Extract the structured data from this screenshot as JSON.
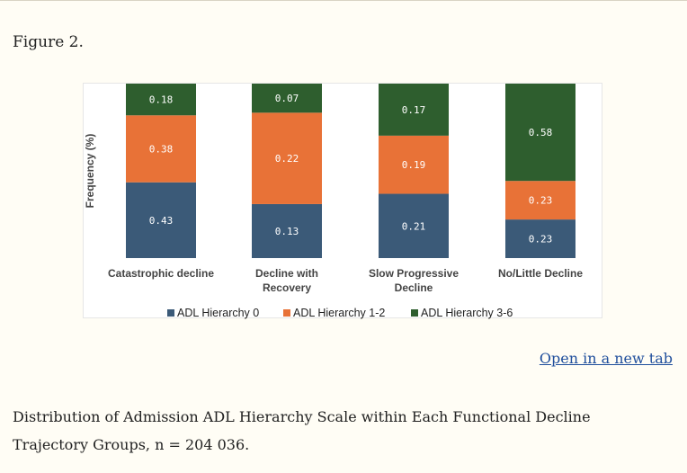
{
  "page": {
    "figure_label": "Figure 2.",
    "open_link": "Open in a new tab",
    "caption": "Distribution of Admission ADL Hierarchy Scale within Each Functional Decline Trajectory Groups, n = 204 036."
  },
  "chart_data": {
    "type": "bar",
    "stacked": true,
    "title": "",
    "xlabel": "",
    "ylabel": "Frequency (%)",
    "ylim": [
      0,
      1
    ],
    "grid": false,
    "legend_position": "bottom",
    "categories": [
      [
        "Catastrophic decline"
      ],
      [
        "Decline with",
        "Recovery"
      ],
      [
        "Slow Progressive",
        "Decline"
      ],
      [
        "No/Little Decline"
      ]
    ],
    "series": [
      {
        "name": "ADL Hierarchy 0",
        "color": "#3b5a78",
        "values": [
          0.43,
          0.13,
          0.21,
          0.23
        ]
      },
      {
        "name": "ADL Hierarchy 1-2",
        "color": "#e87237",
        "values": [
          0.38,
          0.22,
          0.19,
          0.23
        ]
      },
      {
        "name": "ADL Hierarchy 3-6",
        "color": "#2e5e2e",
        "values": [
          0.18,
          0.07,
          0.17,
          0.58
        ]
      }
    ]
  }
}
